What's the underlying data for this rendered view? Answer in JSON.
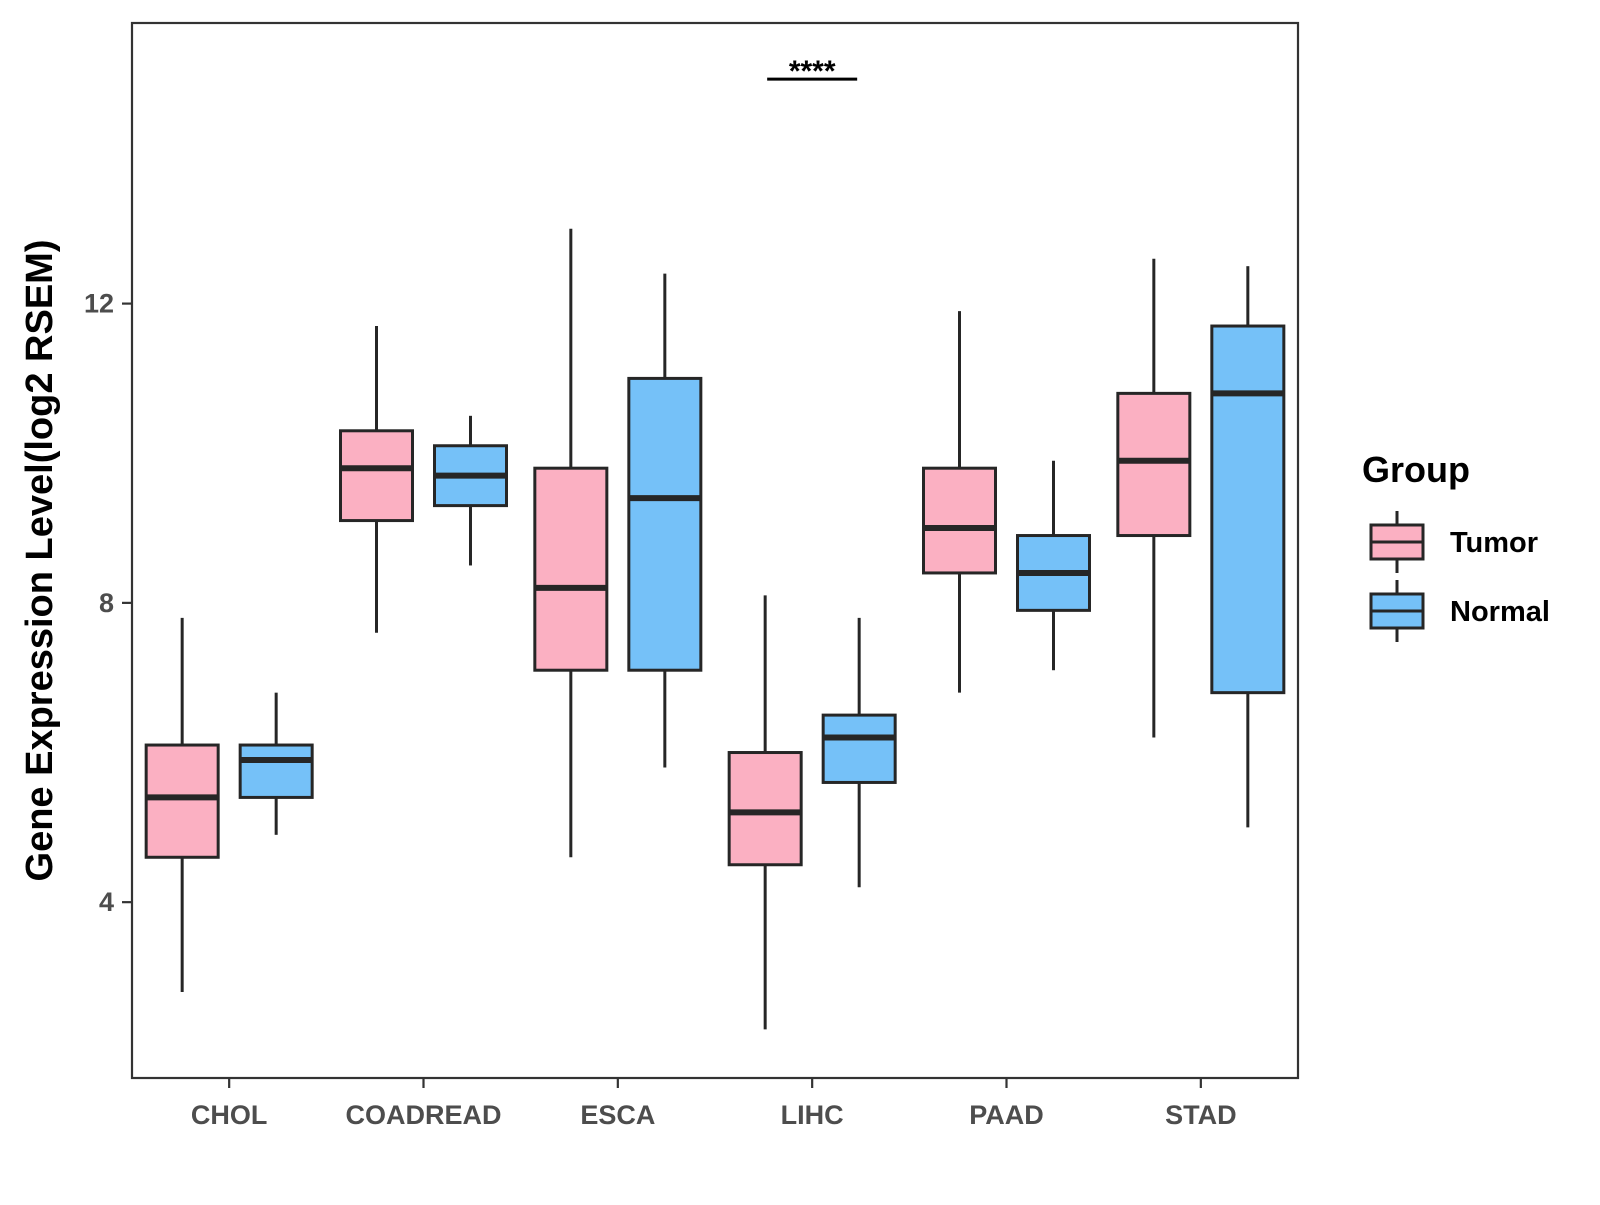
{
  "chart_data": {
    "type": "boxplot",
    "title": "",
    "xlabel": "",
    "ylabel": "Gene Expression Level(log2 RSEM)",
    "ylim": [
      1.65,
      15.75
    ],
    "yticks": [
      4,
      8,
      12
    ],
    "grid": false,
    "legend": {
      "title": "Group",
      "position": "right",
      "entries": [
        "Tumor",
        "Normal"
      ]
    },
    "colors": {
      "Tumor": "#FBB0C2",
      "Normal": "#75C1F8",
      "stroke": "#262626"
    },
    "categories": [
      "CHOL",
      "COADREAD",
      "ESCA",
      "LIHC",
      "PAAD",
      "STAD"
    ],
    "series": [
      {
        "name": "Tumor",
        "boxes": [
          {
            "whisker_low": 2.8,
            "q1": 4.6,
            "median": 5.4,
            "q3": 6.1,
            "whisker_high": 7.8
          },
          {
            "whisker_low": 7.6,
            "q1": 9.1,
            "median": 9.8,
            "q3": 10.3,
            "whisker_high": 11.7
          },
          {
            "whisker_low": 4.6,
            "q1": 7.1,
            "median": 8.2,
            "q3": 9.8,
            "whisker_high": 13.0
          },
          {
            "whisker_low": 2.3,
            "q1": 4.5,
            "median": 5.2,
            "q3": 6.0,
            "whisker_high": 8.1
          },
          {
            "whisker_low": 6.8,
            "q1": 8.4,
            "median": 9.0,
            "q3": 9.8,
            "whisker_high": 11.9
          },
          {
            "whisker_low": 6.2,
            "q1": 8.9,
            "median": 9.9,
            "q3": 10.8,
            "whisker_high": 12.6
          }
        ]
      },
      {
        "name": "Normal",
        "boxes": [
          {
            "whisker_low": 4.9,
            "q1": 5.4,
            "median": 5.9,
            "q3": 6.1,
            "whisker_high": 6.8
          },
          {
            "whisker_low": 8.5,
            "q1": 9.3,
            "median": 9.7,
            "q3": 10.1,
            "whisker_high": 10.5
          },
          {
            "whisker_low": 5.8,
            "q1": 7.1,
            "median": 9.4,
            "q3": 11.0,
            "whisker_high": 12.4
          },
          {
            "whisker_low": 4.2,
            "q1": 5.6,
            "median": 6.2,
            "q3": 6.5,
            "whisker_high": 7.8
          },
          {
            "whisker_low": 7.1,
            "q1": 7.9,
            "median": 8.4,
            "q3": 8.9,
            "whisker_high": 9.9
          },
          {
            "whisker_low": 5.0,
            "q1": 6.8,
            "median": 10.8,
            "q3": 11.7,
            "whisker_high": 12.5
          }
        ]
      }
    ],
    "annotations": [
      {
        "text": "****",
        "category": "LIHC",
        "y": 15.0,
        "type": "significance-bracket"
      }
    ]
  }
}
